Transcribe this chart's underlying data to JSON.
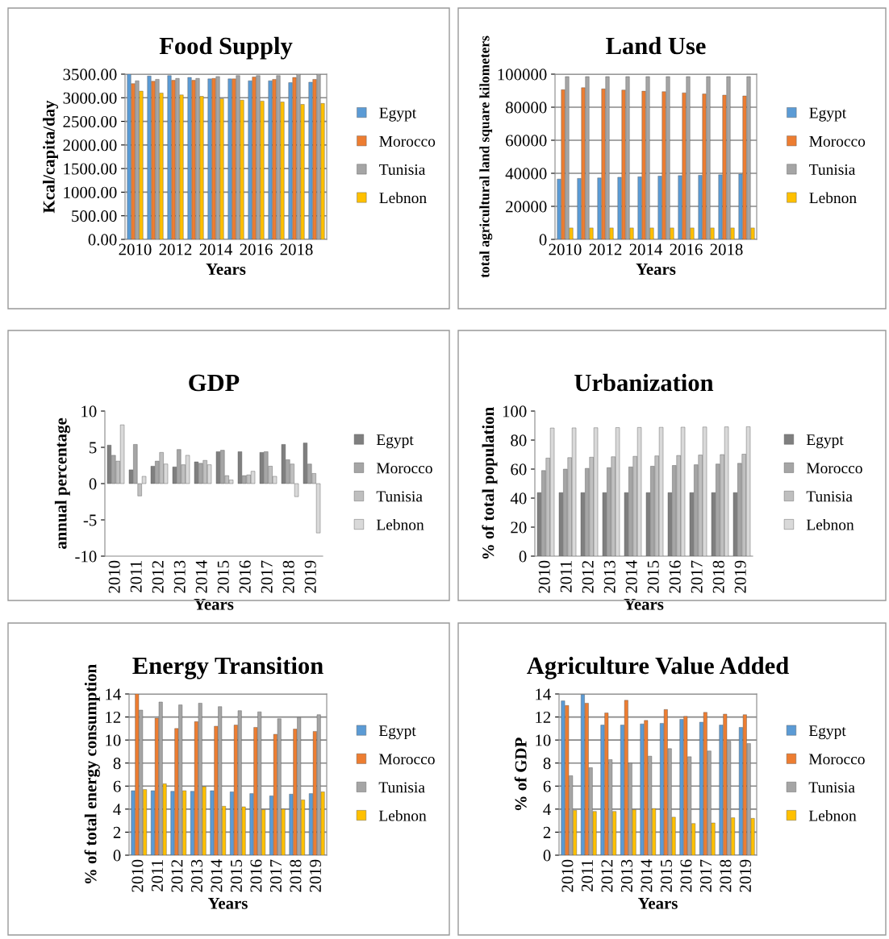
{
  "chart_data": [
    {
      "type": "bar",
      "title": "Food Supply",
      "xlabel": "Years",
      "ylabel": "Kcal/capita/day",
      "categories": [
        "2010",
        null,
        "2012",
        null,
        "2014",
        null,
        "2016",
        null,
        "2018",
        null
      ],
      "grid": "y",
      "legend": "right",
      "ylim": [
        0,
        3500
      ],
      "yticks": [
        {
          "value": 0,
          "label": "0.00"
        },
        {
          "value": 500,
          "label": "500.00"
        },
        {
          "value": 1000,
          "label": "1000.00"
        },
        {
          "value": 1500,
          "label": "1500.00"
        },
        {
          "value": 2000,
          "label": "2000.00"
        },
        {
          "value": 2500,
          "label": "2500.00"
        },
        {
          "value": 3000,
          "label": "3000.00"
        },
        {
          "value": 3500,
          "label": "3500.00"
        }
      ],
      "series": [
        {
          "name": "Egypt",
          "color": "#5b9bd5",
          "values": [
            3500,
            3460,
            3470,
            3430,
            3400,
            3400,
            3360,
            3360,
            3320,
            3330
          ]
        },
        {
          "name": "Morocco",
          "color": "#ed7d31",
          "values": [
            3300,
            3350,
            3370,
            3370,
            3410,
            3400,
            3440,
            3390,
            3430,
            3390
          ]
        },
        {
          "name": "Tunisia",
          "color": "#a5a5a5",
          "values": [
            3360,
            3390,
            3410,
            3410,
            3450,
            3470,
            3470,
            3470,
            3500,
            3500
          ]
        },
        {
          "name": "Lebnon",
          "color": "#ffc000",
          "values": [
            3140,
            3100,
            3060,
            3030,
            2980,
            2950,
            2930,
            2910,
            2860,
            2880
          ]
        }
      ]
    },
    {
      "type": "bar",
      "title": "Land Use",
      "xlabel": "Years",
      "ylabel": "total agricultural land square kilometers",
      "categories": [
        "2010",
        null,
        "2012",
        null,
        "2014",
        null,
        "2016",
        null,
        "2018",
        null
      ],
      "grid": "y",
      "legend": "right",
      "ylim": [
        0,
        100000
      ],
      "yticks": [
        0,
        20000,
        40000,
        60000,
        80000,
        100000
      ],
      "series": [
        {
          "name": "Egypt",
          "color": "#5b9bd5",
          "values": [
            36500,
            36900,
            37200,
            37600,
            37900,
            38300,
            38600,
            38800,
            39100,
            39500
          ]
        },
        {
          "name": "Morocco",
          "color": "#ed7d31",
          "values": [
            90600,
            91800,
            91100,
            90400,
            89700,
            89400,
            88700,
            88000,
            87300,
            86800
          ]
        },
        {
          "name": "Tunisia",
          "color": "#a5a5a5",
          "values": [
            98500,
            98500,
            98500,
            98500,
            98500,
            98500,
            98500,
            98500,
            98500,
            98500
          ]
        },
        {
          "name": "Lebnon",
          "color": "#ffc000",
          "values": [
            6900,
            6900,
            6900,
            6900,
            6900,
            6900,
            6900,
            6900,
            6900,
            6900
          ]
        }
      ]
    },
    {
      "type": "bar",
      "title": "GDP",
      "xlabel": "Years",
      "ylabel": "annual percentage",
      "categories": [
        "2010",
        "2011",
        "2012",
        "2013",
        "2014",
        "2015",
        "2016",
        "2017",
        "2018",
        "2019"
      ],
      "grid": false,
      "legend": "right",
      "ylim": [
        -10,
        10
      ],
      "yticks": [
        -10,
        -5,
        0,
        5,
        10
      ],
      "series": [
        {
          "name": "Egypt",
          "color": "#7f7f7f",
          "values": [
            5.3,
            1.9,
            2.4,
            2.3,
            3.0,
            4.4,
            4.4,
            4.3,
            5.4,
            5.6
          ]
        },
        {
          "name": "Morocco",
          "color": "#a5a5a5",
          "values": [
            3.9,
            5.4,
            3.1,
            4.7,
            2.8,
            4.6,
            1.1,
            4.4,
            3.3,
            2.7
          ]
        },
        {
          "name": "Tunisia",
          "color": "#bfbfbf",
          "values": [
            3.1,
            -1.7,
            4.3,
            2.6,
            3.2,
            1.1,
            1.2,
            2.4,
            2.7,
            1.4
          ]
        },
        {
          "name": "Lebnon",
          "color": "#d9d9d9",
          "values": [
            8.1,
            1.0,
            2.7,
            3.9,
            2.6,
            0.5,
            1.7,
            1.0,
            -1.8,
            -6.8
          ]
        }
      ]
    },
    {
      "type": "bar",
      "title": "Urbanization",
      "xlabel": "Years",
      "ylabel": "% of total population",
      "categories": [
        "2010",
        "2011",
        "2012",
        "2013",
        "2014",
        "2015",
        "2016",
        "2017",
        "2018",
        "2019"
      ],
      "grid": false,
      "legend": "right",
      "ylim": [
        0,
        100
      ],
      "yticks": [
        0,
        20,
        40,
        60,
        80,
        100
      ],
      "series": [
        {
          "name": "Egypt",
          "color": "#7f7f7f",
          "values": [
            43.8,
            43.8,
            43.8,
            43.8,
            43.8,
            43.8,
            43.8,
            43.8,
            43.8,
            43.8
          ]
        },
        {
          "name": "Morocco",
          "color": "#a5a5a5",
          "values": [
            59,
            60,
            60.5,
            61,
            61.5,
            62,
            62.5,
            63,
            63.5,
            64
          ]
        },
        {
          "name": "Tunisia",
          "color": "#bfbfbf",
          "values": [
            67.6,
            67.9,
            68.2,
            68.5,
            68.8,
            69.1,
            69.4,
            69.7,
            70.0,
            70.3
          ]
        },
        {
          "name": "Lebnon",
          "color": "#d9d9d9",
          "values": [
            88.3,
            88.4,
            88.5,
            88.6,
            88.7,
            88.8,
            88.9,
            89.0,
            89.1,
            89.2
          ]
        }
      ]
    },
    {
      "type": "bar",
      "title": "Energy Transition",
      "xlabel": "Years",
      "ylabel": "% of total energy consumption",
      "categories": [
        "2010",
        "2011",
        "2012",
        "2013",
        "2014",
        "2015",
        "2016",
        "2017",
        "2018",
        "2019"
      ],
      "grid": "y",
      "legend": "right",
      "ylim": [
        0,
        14
      ],
      "yticks": [
        0,
        2,
        4,
        6,
        8,
        10,
        12,
        14
      ],
      "series": [
        {
          "name": "Egypt",
          "color": "#5b9bd5",
          "values": [
            5.6,
            5.6,
            5.55,
            5.55,
            5.6,
            5.5,
            5.35,
            5.15,
            5.3,
            5.35
          ]
        },
        {
          "name": "Morocco",
          "color": "#ed7d31",
          "values": [
            14.0,
            11.9,
            11.0,
            11.6,
            11.2,
            11.3,
            11.1,
            10.5,
            10.95,
            10.75
          ]
        },
        {
          "name": "Tunisia",
          "color": "#a5a5a5",
          "values": [
            12.6,
            13.3,
            13.05,
            13.2,
            12.9,
            12.55,
            12.45,
            11.85,
            11.95,
            12.2
          ]
        },
        {
          "name": "Lebnon",
          "color": "#ffc000",
          "values": [
            5.7,
            6.2,
            5.6,
            5.95,
            4.25,
            4.2,
            3.95,
            4.0,
            4.8,
            5.5
          ]
        }
      ]
    },
    {
      "type": "bar",
      "title": "Agriculture Value Added",
      "xlabel": "Years",
      "ylabel": "% of GDP",
      "categories": [
        "2010",
        "2011",
        "2012",
        "2013",
        "2014",
        "2015",
        "2016",
        "2017",
        "2018",
        "2019"
      ],
      "grid": "y",
      "legend": "right",
      "ylim": [
        0,
        14
      ],
      "yticks": [
        0,
        2,
        4,
        6,
        8,
        10,
        12,
        14
      ],
      "series": [
        {
          "name": "Egypt",
          "color": "#5b9bd5",
          "values": [
            13.4,
            13.95,
            11.3,
            11.3,
            11.4,
            11.45,
            11.8,
            11.55,
            11.3,
            11.1
          ]
        },
        {
          "name": "Morocco",
          "color": "#ed7d31",
          "values": [
            13.0,
            13.2,
            12.35,
            13.45,
            11.7,
            12.65,
            12.05,
            12.4,
            12.25,
            12.2
          ]
        },
        {
          "name": "Tunisia",
          "color": "#a5a5a5",
          "values": [
            6.9,
            7.6,
            8.3,
            8.0,
            8.6,
            9.25,
            8.55,
            9.05,
            9.9,
            9.7
          ]
        },
        {
          "name": "Lebnon",
          "color": "#ffc000",
          "values": [
            3.9,
            3.8,
            3.8,
            3.95,
            4.05,
            3.3,
            2.75,
            2.8,
            3.25,
            3.2
          ]
        }
      ]
    }
  ]
}
